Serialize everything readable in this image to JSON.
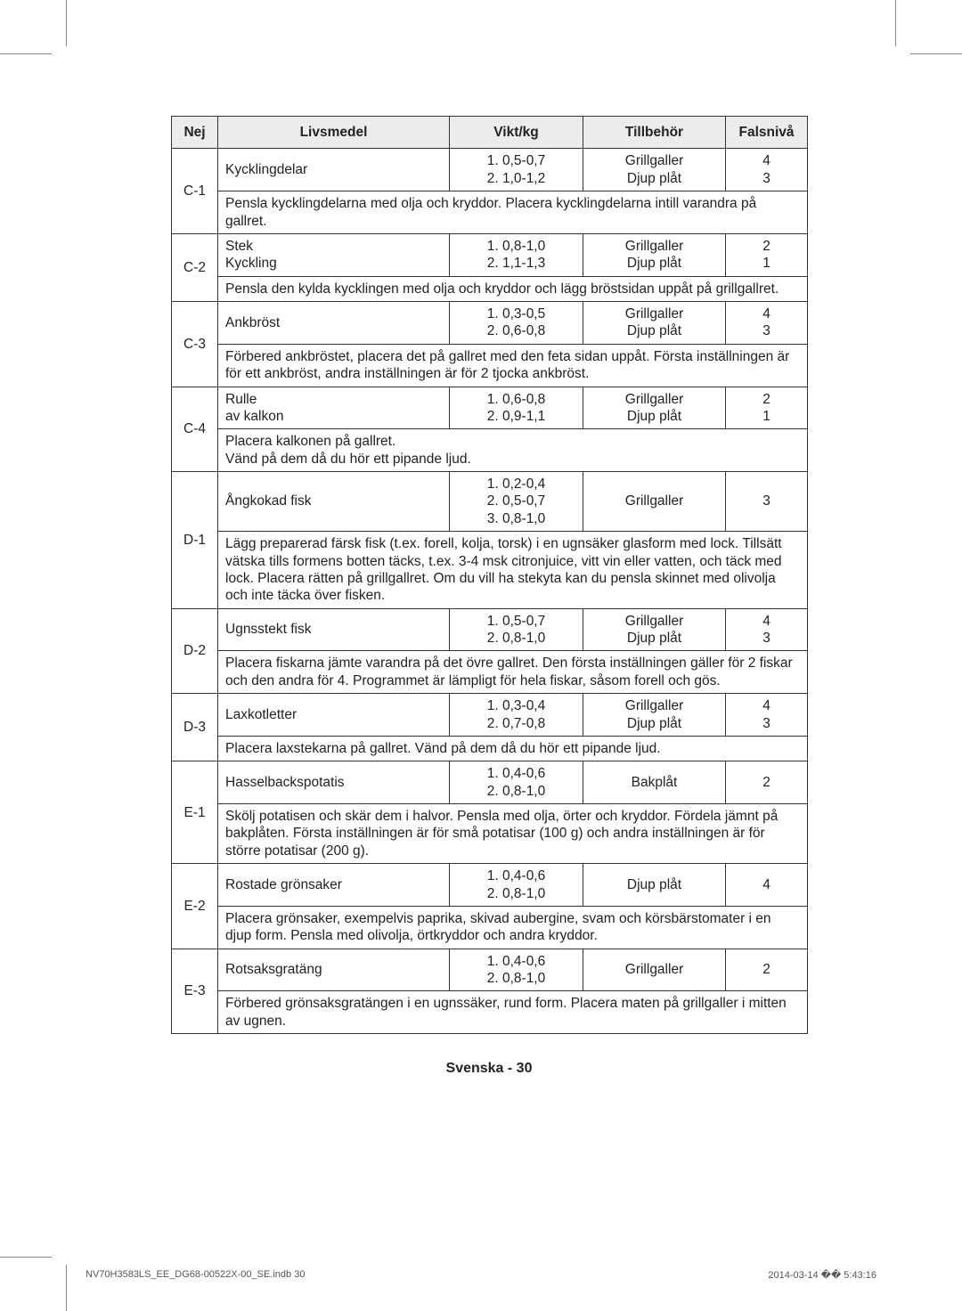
{
  "headers": {
    "no": "Nej",
    "food": "Livsmedel",
    "weight": "Vikt/kg",
    "accessory": "Tillbehör",
    "level": "Falsnivå"
  },
  "rows": [
    {
      "id": "C-1",
      "food": "Kycklingdelar",
      "weight": "1. 0,5-0,7\n2. 1,0-1,2",
      "accessory": "Grillgaller\nDjup plåt",
      "level": "4\n3",
      "instr": "Pensla kycklingdelarna med olja och kryddor. Placera kycklingdelarna intill varandra på gallret."
    },
    {
      "id": "C-2",
      "food": "Stek\nKyckling",
      "weight": "1. 0,8-1,0\n2. 1,1-1,3",
      "accessory": "Grillgaller\nDjup plåt",
      "level": "2\n1",
      "instr": "Pensla den kylda kycklingen med olja och kryddor och lägg bröstsidan uppåt på grillgallret."
    },
    {
      "id": "C-3",
      "food": "Ankbröst",
      "weight": "1. 0,3-0,5\n2. 0,6-0,8",
      "accessory": "Grillgaller\nDjup plåt",
      "level": "4\n3",
      "instr": "Förbered ankbröstet, placera det på gallret med den feta sidan uppåt. Första inställningen är för ett ankbröst, andra inställningen är för 2 tjocka ankbröst."
    },
    {
      "id": "C-4",
      "food": "Rulle\nav kalkon",
      "weight": "1. 0,6-0,8\n2. 0,9-1,1",
      "accessory": "Grillgaller\nDjup plåt",
      "level": "2\n1",
      "instr": "Placera kalkonen på gallret.\nVänd på dem då du hör ett pipande ljud."
    },
    {
      "id": "D-1",
      "food": "Ångkokad fisk",
      "weight": "1. 0,2-0,4\n2. 0,5-0,7\n3. 0,8-1,0",
      "accessory": "Grillgaller",
      "level": "3",
      "instr": "Lägg preparerad färsk fisk (t.ex. forell, kolja, torsk) i en ugnsäker glasform med lock. Tillsätt vätska tills formens botten täcks, t.ex. 3-4 msk citronjuice, vitt vin eller vatten, och täck med lock. Placera rätten på grillgallret. Om du vill ha stekyta kan du pensla skinnet med olivolja och inte täcka över fisken."
    },
    {
      "id": "D-2",
      "food": "Ugnsstekt fisk",
      "weight": "1. 0,5-0,7\n2. 0,8-1,0",
      "accessory": "Grillgaller\nDjup plåt",
      "level": "4\n3",
      "instr": "Placera fiskarna jämte varandra på det övre gallret. Den första inställningen gäller för 2 fiskar och den andra för 4. Programmet är lämpligt för hela fiskar, såsom forell och gös."
    },
    {
      "id": "D-3",
      "food": "Laxkotletter",
      "weight": "1. 0,3-0,4\n2. 0,7-0,8",
      "accessory": "Grillgaller\nDjup plåt",
      "level": "4\n3",
      "instr": "Placera laxstekarna på gallret. Vänd på dem då du hör ett pipande ljud."
    },
    {
      "id": "E-1",
      "food": "Hasselbackspotatis",
      "weight": "1. 0,4-0,6\n2. 0,8-1,0",
      "accessory": "Bakplåt",
      "level": "2",
      "instr": "Skölj potatisen och skär dem i halvor. Pensla med olja, örter och kryddor. Fördela jämnt på bakplåten. Första inställningen är för små potatisar (100 g) och andra inställningen är för större potatisar (200 g)."
    },
    {
      "id": "E-2",
      "food": "Rostade grönsaker",
      "weight": "1. 0,4-0,6\n2. 0,8-1,0",
      "accessory": "Djup plåt",
      "level": "4",
      "instr": "Placera grönsaker, exempelvis paprika, skivad aubergine, svam och körsbärstomater i en djup form. Pensla med olivolja, örtkryddor och andra kryddor."
    },
    {
      "id": "E-3",
      "food": "Rotsaksgratäng",
      "weight": "1. 0,4-0,6\n2. 0,8-1,0",
      "accessory": "Grillgaller",
      "level": "2",
      "instr": "Förbered grönsaksgratängen i en ugnssäker, rund form. Placera maten på grillgaller i mitten av ugnen."
    }
  ],
  "pageLabel": "Svenska - 30",
  "footer": {
    "left": "NV70H3583LS_EE_DG68-00522X-00_SE.indb   30",
    "right": "2014-03-14   �� 5:43:16"
  }
}
